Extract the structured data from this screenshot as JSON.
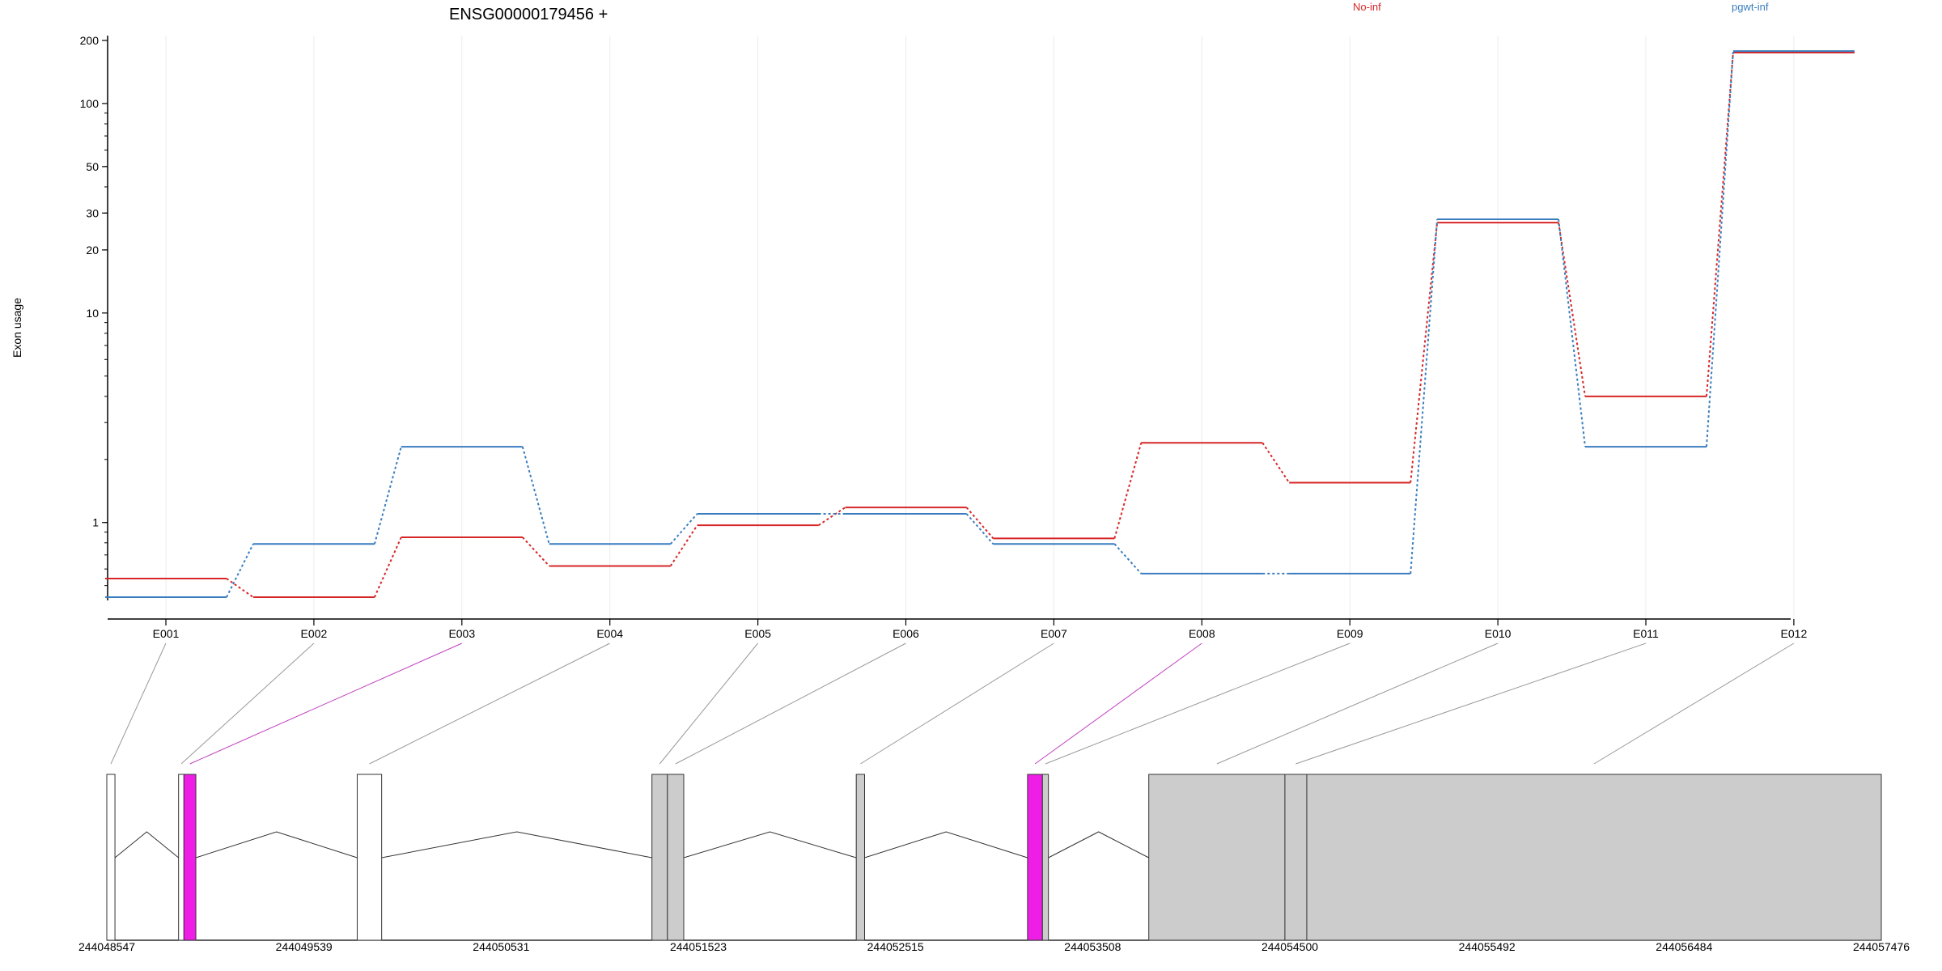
{
  "chart_data": {
    "type": "line",
    "title": "ENSG00000179456 +",
    "ylabel": "Exon usage",
    "xlabel": "",
    "y_scale": "log",
    "ylim": [
      0.4,
      220
    ],
    "y_ticks": [
      1,
      10,
      20,
      30,
      50,
      100,
      200
    ],
    "grid": "vertical",
    "legend_placement": "top-right",
    "colors": {
      "No-inf": "#d62728",
      "pgwt-inf": "#3a7dbf",
      "highlight": "#ee1ee6",
      "exon_gray": "#cccccc"
    },
    "categories": [
      "E001",
      "E002",
      "E003",
      "E004",
      "E005",
      "E006",
      "E007",
      "E008",
      "E009",
      "E010",
      "E011",
      "E012"
    ],
    "series": [
      {
        "name": "No-inf",
        "values": [
          0.54,
          0.44,
          0.85,
          0.62,
          0.97,
          1.18,
          0.84,
          2.4,
          1.55,
          27,
          4.0,
          175
        ]
      },
      {
        "name": "pgwt-inf",
        "values": [
          0.44,
          0.79,
          2.3,
          0.79,
          1.1,
          1.1,
          0.79,
          0.57,
          0.57,
          28,
          2.3,
          178
        ]
      }
    ],
    "gene_model": {
      "coordinate_labels": [
        "244048547",
        "244049539",
        "244050531",
        "244051523",
        "244052515",
        "244053508",
        "244054500",
        "244055492",
        "244056484",
        "244057476"
      ],
      "coord_range": [
        244048547,
        244057476
      ],
      "exons": [
        {
          "id": "E001",
          "start": 244048547,
          "end": 244048588,
          "fill": "white"
        },
        {
          "id": "E002",
          "start": 244048908,
          "end": 244048935,
          "fill": "white"
        },
        {
          "id": "E003",
          "start": 244048935,
          "end": 244048995,
          "fill": "highlight"
        },
        {
          "id": "E004",
          "start": 244049807,
          "end": 244049930,
          "fill": "white"
        },
        {
          "id": "E005",
          "start": 244051290,
          "end": 244051368,
          "fill": "gray"
        },
        {
          "id": "E006",
          "start": 244051368,
          "end": 244051450,
          "fill": "gray"
        },
        {
          "id": "E007",
          "start": 244052318,
          "end": 244052360,
          "fill": "gray"
        },
        {
          "id": "E008",
          "start": 244053180,
          "end": 244053255,
          "fill": "highlight"
        },
        {
          "id": "E009",
          "start": 244053255,
          "end": 244053285,
          "fill": "gray"
        },
        {
          "id": "E010",
          "start": 244053790,
          "end": 244054475,
          "fill": "gray"
        },
        {
          "id": "E011",
          "start": 244054475,
          "end": 244054585,
          "fill": "gray"
        },
        {
          "id": "E012",
          "start": 244054585,
          "end": 244057476,
          "fill": "gray"
        }
      ]
    }
  }
}
